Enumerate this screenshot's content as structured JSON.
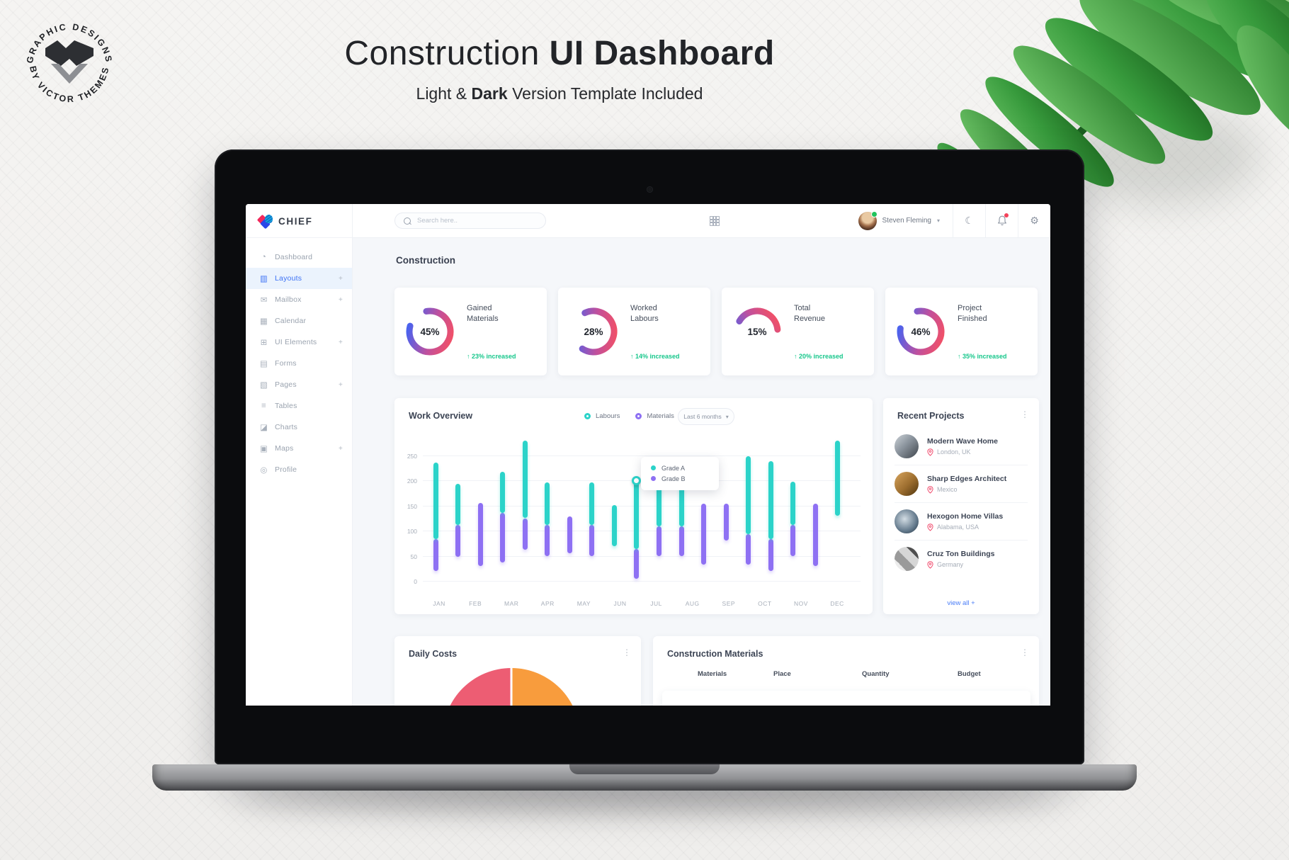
{
  "hero": {
    "badge_top": "· GRAPHIC DESIGNS ·",
    "badge_bottom": "BY VICTOR THEMES",
    "title_light": "Construction ",
    "title_bold": "UI Dashboard",
    "subtitle_pre": "Light & ",
    "subtitle_bold": "Dark",
    "subtitle_post": " Version Template Included"
  },
  "app": {
    "brand": "CHIEF",
    "topbar": {
      "search_placeholder": "Search here..",
      "user_name": "Steven Fleming"
    },
    "page_title": "Construction",
    "sidebar": [
      {
        "label": "Dashboard",
        "glyph": "◔",
        "plus": false,
        "active": false
      },
      {
        "label": "Layouts",
        "glyph": "▥",
        "plus": true,
        "active": true
      },
      {
        "label": "Mailbox",
        "glyph": "✉",
        "plus": true,
        "active": false
      },
      {
        "label": "Calendar",
        "glyph": "▦",
        "plus": false,
        "active": false
      },
      {
        "label": "UI Elements",
        "glyph": "⊞",
        "plus": true,
        "active": false
      },
      {
        "label": "Forms",
        "glyph": "▤",
        "plus": false,
        "active": false
      },
      {
        "label": "Pages",
        "glyph": "▧",
        "plus": true,
        "active": false
      },
      {
        "label": "Tables",
        "glyph": "≡",
        "plus": false,
        "active": false
      },
      {
        "label": "Charts",
        "glyph": "◪",
        "plus": false,
        "active": false
      },
      {
        "label": "Maps",
        "glyph": "▣",
        "plus": true,
        "active": false
      },
      {
        "label": "Profile",
        "glyph": "◎",
        "plus": false,
        "active": false
      }
    ],
    "stat_cards": [
      {
        "value": "45%",
        "label": "Gained Materials",
        "delta": "23% increased"
      },
      {
        "value": "28%",
        "label": "Worked Labours",
        "delta": "14% increased"
      },
      {
        "value": "15%",
        "label": "Total Revenue",
        "delta": "20% increased"
      },
      {
        "value": "46%",
        "label": "Project Finished",
        "delta": "35% increased"
      }
    ],
    "recent_projects": {
      "title": "Recent Projects",
      "view_all": "view all +",
      "items": [
        {
          "name": "Modern Wave Home",
          "location": "London, UK"
        },
        {
          "name": "Sharp Edges Architect",
          "location": "Mexico"
        },
        {
          "name": "Hexogon Home Villas",
          "location": "Alabama, USA"
        },
        {
          "name": "Cruz Ton Buildings",
          "location": "Germany"
        }
      ]
    },
    "daily_costs": {
      "title": "Daily Costs"
    },
    "materials_table": {
      "title": "Construction Materials",
      "headers": [
        "Materials",
        "Place",
        "Quantity",
        "Budget"
      ]
    }
  },
  "chart_data": [
    {
      "type": "rangeBar",
      "title": "Work Overview",
      "legend": [
        {
          "name": "Labours",
          "color": "#2bd3c9"
        },
        {
          "name": "Materials",
          "color": "#8e70f3"
        }
      ],
      "range_selector": "Last 6 months",
      "months": [
        "JAN",
        "FEB",
        "MAR",
        "APR",
        "MAY",
        "JUN",
        "JUL",
        "AUG",
        "SEP",
        "OCT",
        "NOV",
        "DEC"
      ],
      "y_ticks": [
        0,
        50,
        100,
        150,
        200,
        250
      ],
      "ylim": [
        0,
        285
      ],
      "grid": true,
      "tooltip": {
        "items": [
          {
            "label": "Grade A",
            "color": "#2bd3c9"
          },
          {
            "label": "Grade B",
            "color": "#8e70f3"
          }
        ],
        "anchor_month": "JUN",
        "anchor_value": 200
      },
      "columns": [
        {
          "labours": [
            83,
            236
          ],
          "materials": [
            20,
            83
          ]
        },
        {
          "labours": [
            111,
            193
          ],
          "materials": [
            48,
            111
          ]
        },
        {
          "materials": [
            29,
            156
          ]
        },
        {
          "labours": [
            135,
            217
          ],
          "materials": [
            36,
            135
          ]
        },
        {
          "labours": [
            125,
            280
          ],
          "materials": [
            62,
            125
          ]
        },
        {
          "labours": [
            112,
            197
          ],
          "materials": [
            50,
            112
          ]
        },
        {
          "materials": [
            55,
            128
          ]
        },
        {
          "labours": [
            112,
            197
          ],
          "materials": [
            50,
            112
          ]
        },
        {
          "labours": [
            69,
            151
          ]
        },
        {
          "labours": [
            64,
            200
          ],
          "materials": [
            4,
            64
          ],
          "marker": true
        },
        {
          "labours": [
            109,
            198
          ],
          "materials": [
            50,
            109
          ]
        },
        {
          "labours": [
            109,
            198
          ],
          "materials": [
            50,
            109
          ]
        },
        {
          "materials": [
            32,
            154
          ]
        },
        {
          "materials": [
            81,
            154
          ]
        },
        {
          "labours": [
            93,
            249
          ],
          "materials": [
            32,
            93
          ]
        },
        {
          "labours": [
            83,
            239
          ],
          "materials": [
            20,
            83
          ]
        },
        {
          "labours": [
            111,
            198
          ],
          "materials": [
            50,
            111
          ]
        },
        {
          "materials": [
            30,
            154
          ]
        },
        {
          "labours": [
            130,
            280
          ]
        }
      ]
    },
    {
      "type": "pie",
      "title": "Daily Costs",
      "slices": [
        {
          "value": 50,
          "color": "#ed5d73"
        },
        {
          "value": 50,
          "color": "#f89c3d"
        }
      ],
      "note_visible_portion": "top half of pie visible at screen edge"
    }
  ]
}
